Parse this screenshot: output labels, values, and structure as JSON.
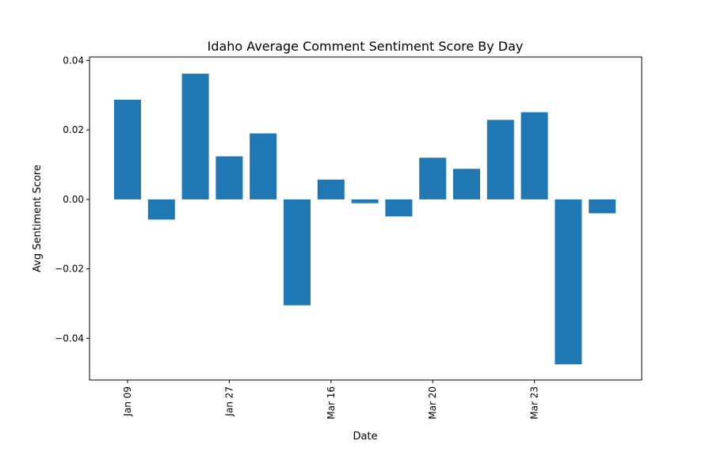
{
  "chart_data": {
    "type": "bar",
    "title": "Idaho Average Comment Sentiment Score By Day",
    "xlabel": "Date",
    "ylabel": "Avg Sentiment Score",
    "color": "#1f77b4",
    "ylim": [
      -0.052,
      0.041
    ],
    "yticks": [
      -0.04,
      -0.02,
      0.0,
      0.02,
      0.04
    ],
    "ytick_labels": [
      "−0.04",
      "−0.02",
      "0.00",
      "0.02",
      "0.04"
    ],
    "xtick_labels": [
      {
        "index": 0,
        "label": "Jan 09"
      },
      {
        "index": 3,
        "label": "Jan 27"
      },
      {
        "index": 6,
        "label": "Mar 16"
      },
      {
        "index": 9,
        "label": "Mar 20"
      },
      {
        "index": 12,
        "label": "Mar 23"
      }
    ],
    "values": [
      0.0287,
      -0.0058,
      0.0362,
      0.0124,
      0.019,
      -0.0305,
      0.0057,
      -0.0011,
      -0.0049,
      0.012,
      0.0088,
      0.0229,
      0.0251,
      -0.0475,
      -0.004
    ],
    "grid": false,
    "legend": "none"
  }
}
